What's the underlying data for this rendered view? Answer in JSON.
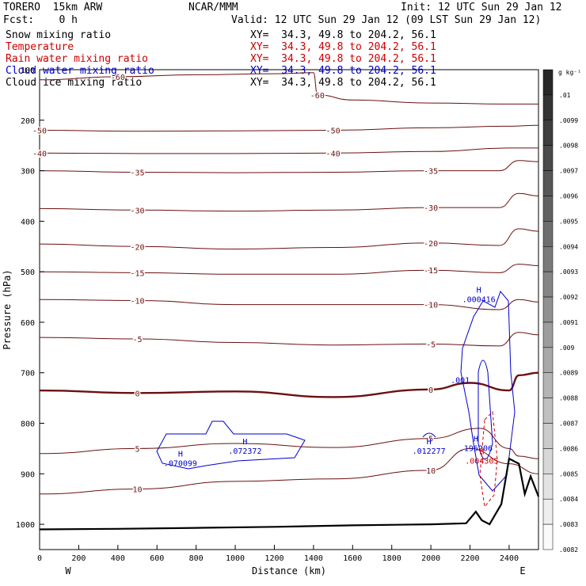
{
  "header": {
    "model": "TORERO  15km ARW",
    "org": "NCAR/MMM",
    "init": "Init: 12 UTC Sun 29 Jan 12",
    "fcst": "Fcst:    0 h",
    "valid": "Valid: 12 UTC Sun 29 Jan 12 (09 LST Sun 29 Jan 12)"
  },
  "legend": [
    {
      "name": "Snow mixing ratio",
      "xy": "XY=  34.3, 49.8 to 204.2, 56.1",
      "color": "#000000"
    },
    {
      "name": "Temperature",
      "xy": "XY=  34.3, 49.8 to 204.2, 56.1",
      "color": "#cc0000"
    },
    {
      "name": "Rain water mixing ratio",
      "xy": "XY=  34.3, 49.8 to 204.2, 56.1",
      "color": "#cc0000"
    },
    {
      "name": "Cloud water mixing ratio",
      "xy": "XY=  34.3, 49.8 to 204.2, 56.1",
      "color": "#0000cc"
    },
    {
      "name": "Cloud ice mixing ratio",
      "xy": "XY=  34.3, 49.8 to 204.2, 56.1",
      "color": "#000000"
    }
  ],
  "chart_data": {
    "type": "line",
    "xlabel": "Distance (km)",
    "ylabel": "Pressure (hPa)",
    "xlim": [
      0,
      2550
    ],
    "ylim": [
      1050,
      100
    ],
    "x_ticks": [
      0,
      200,
      400,
      600,
      800,
      1000,
      1200,
      1400,
      1600,
      1800,
      2000,
      2200,
      2400
    ],
    "y_ticks": [
      1000,
      900,
      800,
      700,
      600,
      500,
      400,
      300,
      200,
      100
    ],
    "endpoints": {
      "left": "W",
      "right": "E"
    },
    "temperature_isotherms": [
      {
        "label": "-60",
        "points": [
          [
            0,
            120
          ],
          [
            400,
            114
          ],
          [
            800,
            110
          ],
          [
            1200,
            108
          ],
          [
            1400,
            106
          ],
          [
            1420,
            150
          ],
          [
            1600,
            160
          ],
          [
            2000,
            166
          ],
          [
            2400,
            168
          ],
          [
            2550,
            168
          ]
        ]
      },
      {
        "label": "-50",
        "points": [
          [
            0,
            220
          ],
          [
            500,
            222
          ],
          [
            1000,
            221
          ],
          [
            1500,
            220
          ],
          [
            2000,
            215
          ],
          [
            2400,
            212
          ],
          [
            2550,
            210
          ]
        ]
      },
      {
        "label": "-40",
        "points": [
          [
            0,
            265
          ],
          [
            500,
            266
          ],
          [
            1000,
            266
          ],
          [
            1500,
            265
          ],
          [
            2000,
            262
          ],
          [
            2400,
            255
          ],
          [
            2550,
            255
          ]
        ]
      },
      {
        "label": "-35",
        "points": [
          [
            0,
            300
          ],
          [
            500,
            303
          ],
          [
            1000,
            304
          ],
          [
            1500,
            303
          ],
          [
            2000,
            300
          ],
          [
            2350,
            300
          ],
          [
            2450,
            280
          ],
          [
            2550,
            282
          ]
        ]
      },
      {
        "label": "-30",
        "points": [
          [
            0,
            375
          ],
          [
            500,
            378
          ],
          [
            1000,
            380
          ],
          [
            1500,
            378
          ],
          [
            2000,
            373
          ],
          [
            2350,
            373
          ],
          [
            2450,
            345
          ],
          [
            2550,
            350
          ]
        ]
      },
      {
        "label": "-20",
        "points": [
          [
            0,
            445
          ],
          [
            500,
            450
          ],
          [
            1000,
            455
          ],
          [
            1500,
            452
          ],
          [
            2000,
            443
          ],
          [
            2350,
            448
          ],
          [
            2450,
            415
          ],
          [
            2550,
            420
          ]
        ]
      },
      {
        "label": "-15",
        "points": [
          [
            0,
            500
          ],
          [
            500,
            502
          ],
          [
            1000,
            505
          ],
          [
            1500,
            505
          ],
          [
            2000,
            497
          ],
          [
            2350,
            502
          ],
          [
            2450,
            485
          ],
          [
            2550,
            488
          ]
        ]
      },
      {
        "label": "-10",
        "points": [
          [
            0,
            555
          ],
          [
            500,
            557
          ],
          [
            1000,
            565
          ],
          [
            1500,
            565
          ],
          [
            2000,
            565
          ],
          [
            2350,
            575
          ],
          [
            2450,
            555
          ],
          [
            2550,
            560
          ]
        ]
      },
      {
        "label": "-5",
        "points": [
          [
            0,
            630
          ],
          [
            500,
            633
          ],
          [
            1000,
            640
          ],
          [
            1500,
            645
          ],
          [
            2000,
            643
          ],
          [
            2350,
            647
          ],
          [
            2450,
            620
          ],
          [
            2550,
            625
          ]
        ]
      },
      {
        "label": "0",
        "points": [
          [
            0,
            735
          ],
          [
            500,
            740
          ],
          [
            1000,
            737
          ],
          [
            1500,
            748
          ],
          [
            2000,
            733
          ],
          [
            2200,
            720
          ],
          [
            2400,
            735
          ],
          [
            2450,
            705
          ],
          [
            2550,
            700
          ]
        ]
      },
      {
        "label": "5",
        "points": [
          [
            0,
            860
          ],
          [
            500,
            850
          ],
          [
            1000,
            840
          ],
          [
            1500,
            848
          ],
          [
            2000,
            830
          ],
          [
            2250,
            810
          ],
          [
            2400,
            850
          ],
          [
            2450,
            865
          ],
          [
            2550,
            870
          ]
        ]
      },
      {
        "label": "10",
        "points": [
          [
            0,
            940
          ],
          [
            500,
            930
          ],
          [
            1000,
            915
          ],
          [
            1500,
            910
          ],
          [
            2000,
            893
          ],
          [
            2200,
            850
          ],
          [
            2400,
            880
          ],
          [
            2550,
            900
          ]
        ]
      }
    ],
    "cloud_water_annotations": [
      {
        "label": "H",
        "value": ".072372",
        "x": 1050,
        "y": 860
      },
      {
        "label": "H",
        "value": ".070099",
        "x": 720,
        "y": 885
      },
      {
        "label": "H",
        "value": ".012277",
        "x": 1990,
        "y": 860
      },
      {
        "label": "H",
        "value": ".196206",
        "x": 2230,
        "y": 855
      },
      {
        "label": "H",
        "value": ".000416",
        "x": 2245,
        "y": 560
      },
      {
        "label": "",
        "value": ".001",
        "x": 2150,
        "y": 720
      }
    ],
    "rain_annotations": [
      {
        "label": "H",
        "value": ".004305",
        "x": 2260,
        "y": 880
      }
    ],
    "terrain": [
      [
        0,
        1010
      ],
      [
        400,
        1009
      ],
      [
        800,
        1007
      ],
      [
        1200,
        1005
      ],
      [
        1600,
        1002
      ],
      [
        2000,
        1000
      ],
      [
        2180,
        998
      ],
      [
        2230,
        975
      ],
      [
        2260,
        992
      ],
      [
        2300,
        1000
      ],
      [
        2360,
        960
      ],
      [
        2400,
        870
      ],
      [
        2450,
        880
      ],
      [
        2480,
        940
      ],
      [
        2510,
        905
      ],
      [
        2550,
        945
      ]
    ]
  },
  "colorbar": {
    "unit": "g kg⁻¹",
    "labels": [
      ".01",
      ".0099",
      ".0098",
      ".0097",
      ".0096",
      ".0095",
      ".0094",
      ".0093",
      ".0092",
      ".0091",
      ".009",
      ".0089",
      ".0088",
      ".0087",
      ".0086",
      ".0085",
      ".0084",
      ".0083",
      ".0082"
    ]
  },
  "colors": {
    "temperature": "#6b1010",
    "cloud_water": "#0000cc",
    "rain": "#cc0000",
    "terrain": "#000000"
  }
}
